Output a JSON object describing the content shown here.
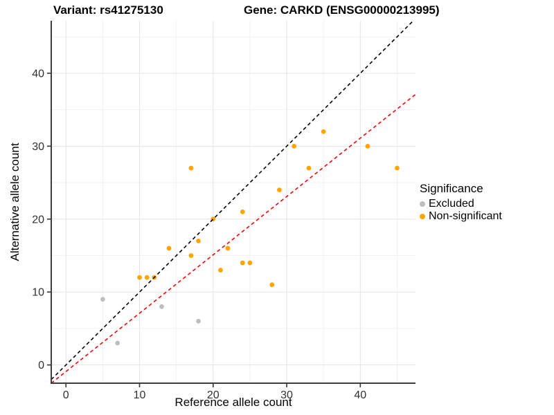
{
  "titles": {
    "left": "Variant: rs41275130",
    "right": "Gene: CARKD (ENSG00000213995)"
  },
  "axes": {
    "x_label": "Reference allele count",
    "y_label": "Alternative allele count"
  },
  "legend": {
    "title": "Significance",
    "items": [
      {
        "label": "Excluded",
        "color": "#BEBEBE"
      },
      {
        "label": "Non-significant",
        "color": "#FFA500"
      }
    ]
  },
  "chart_data": {
    "type": "scatter",
    "title": "Variant: rs41275130 / Gene: CARKD (ENSG00000213995)",
    "xlabel": "Reference allele count",
    "ylabel": "Alternative allele count",
    "xlim": [
      -2,
      47.5
    ],
    "ylim": [
      -2.5,
      47.2
    ],
    "xticks": [
      0,
      10,
      20,
      30,
      40
    ],
    "yticks": [
      0,
      10,
      20,
      30,
      40
    ],
    "minor_xticks": [
      5,
      15,
      25,
      35,
      45
    ],
    "minor_yticks": [
      5,
      15,
      25,
      35,
      45
    ],
    "grid": true,
    "legend_position": "right",
    "series": [
      {
        "name": "Excluded",
        "color": "#BEBEBE",
        "points": [
          [
            5,
            9
          ],
          [
            7,
            3
          ],
          [
            13,
            8
          ],
          [
            18,
            6
          ]
        ]
      },
      {
        "name": "Non-significant",
        "color": "#FFA500",
        "points": [
          [
            10,
            12
          ],
          [
            11,
            12
          ],
          [
            12,
            12
          ],
          [
            14,
            16
          ],
          [
            17,
            15
          ],
          [
            17,
            27
          ],
          [
            18,
            17
          ],
          [
            20,
            20
          ],
          [
            21,
            13
          ],
          [
            22,
            16
          ],
          [
            24,
            14
          ],
          [
            24,
            21
          ],
          [
            25,
            14
          ],
          [
            28,
            11
          ],
          [
            29,
            24
          ],
          [
            31,
            30
          ],
          [
            33,
            27
          ],
          [
            35,
            32
          ],
          [
            41,
            30
          ],
          [
            45,
            27
          ]
        ]
      }
    ],
    "lines": [
      {
        "name": "identity",
        "style": "dashed",
        "color": "#000000",
        "slope": 1,
        "intercept": 0
      },
      {
        "name": "fit",
        "style": "dashed",
        "color": "#FF0000",
        "slope": 0.8,
        "intercept": -0.9
      }
    ]
  },
  "style": {
    "grid_major": "#E4E4E4",
    "grid_minor": "#F1F1F1",
    "axis_line": "#3C3C3C",
    "tick_mark": "#333333",
    "tick_text": "#303030"
  }
}
